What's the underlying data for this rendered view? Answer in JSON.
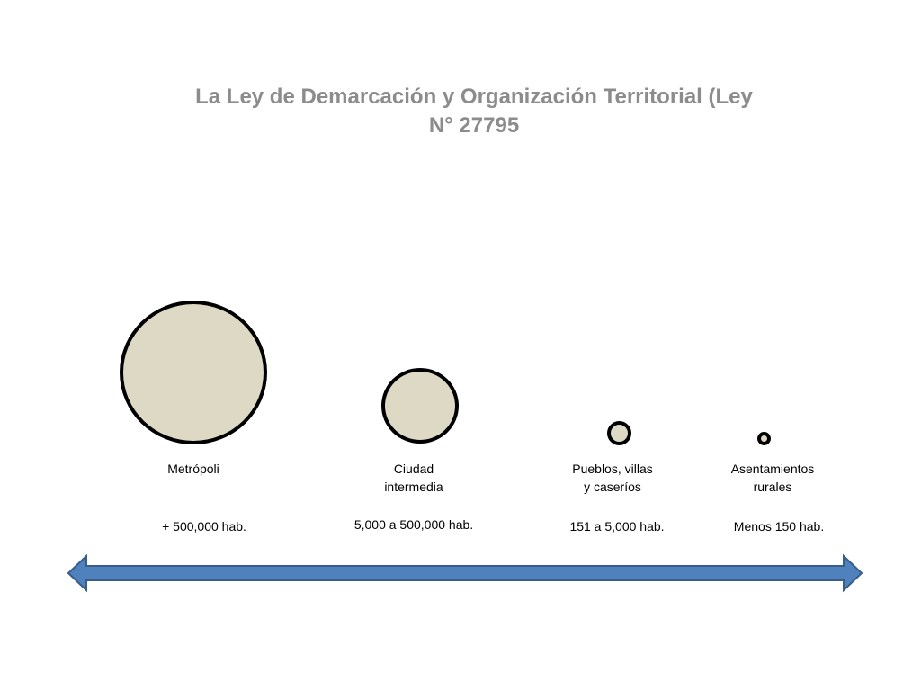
{
  "title": {
    "line1": "La Ley de Demarcación y Organización Territorial (Ley",
    "line2": "N° 27795"
  },
  "categories": [
    {
      "label_lines": [
        "Metrópoli"
      ],
      "population": "+ 500,000 hab."
    },
    {
      "label_lines": [
        "Ciudad",
        "intermedia"
      ],
      "population": "5,000 a 500,000 hab."
    },
    {
      "label_lines": [
        "Pueblos, villas",
        "y caseríos"
      ],
      "population": "151 a 5,000 hab."
    },
    {
      "label_lines": [
        "Asentamientos",
        "rurales"
      ],
      "population": "Menos 150 hab."
    }
  ],
  "colors": {
    "circle_fill": "#ddd9c4",
    "circle_stroke": "#000000",
    "arrow_fill": "#4f81bd",
    "arrow_stroke": "#385d8a",
    "title": "#8c8c8c"
  },
  "arrow": {
    "type": "double-headed-arrow"
  }
}
